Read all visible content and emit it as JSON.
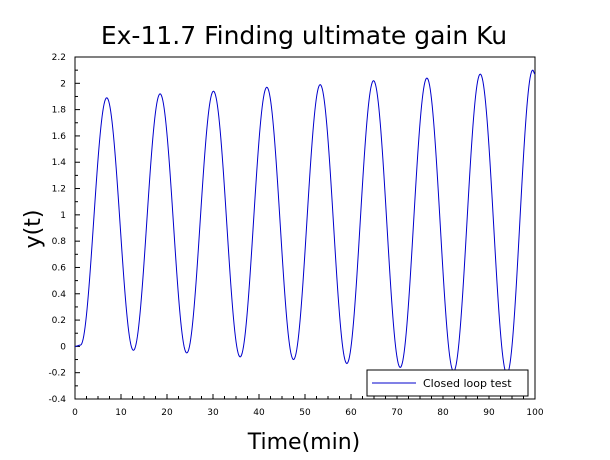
{
  "chart_data": {
    "type": "line",
    "title": "Ex-11.7 Finding ultimate gain Ku",
    "xlabel": "Time(min)",
    "ylabel": "y(t)",
    "xlim": [
      0,
      100
    ],
    "ylim": [
      -0.4,
      2.2
    ],
    "x_ticks": [
      "0",
      "10",
      "20",
      "30",
      "40",
      "50",
      "60",
      "70",
      "80",
      "90",
      "100"
    ],
    "y_ticks": [
      "-0.4",
      "-0.2",
      "0",
      "0.2",
      "0.4",
      "0.6",
      "0.8",
      "1",
      "1.2",
      "1.4",
      "1.6",
      "1.8",
      "2",
      "2.2"
    ],
    "grid": false,
    "legend_position": "bottom-right",
    "series": [
      {
        "name": "Closed loop test",
        "color": "#0000cc",
        "x": [
          0,
          1.2,
          6.9,
          12.7,
          18.5,
          24.3,
          30.1,
          35.9,
          41.7,
          47.5,
          53.3,
          59.1,
          64.9,
          70.7,
          76.5,
          82.3,
          88.1,
          93.9,
          99.5,
          100
        ],
        "y": [
          0,
          0.01,
          1.89,
          -0.03,
          1.92,
          -0.05,
          1.94,
          -0.08,
          1.97,
          -0.1,
          1.99,
          -0.13,
          2.02,
          -0.16,
          2.04,
          -0.19,
          2.07,
          -0.21,
          2.1,
          2.07
        ]
      }
    ]
  }
}
